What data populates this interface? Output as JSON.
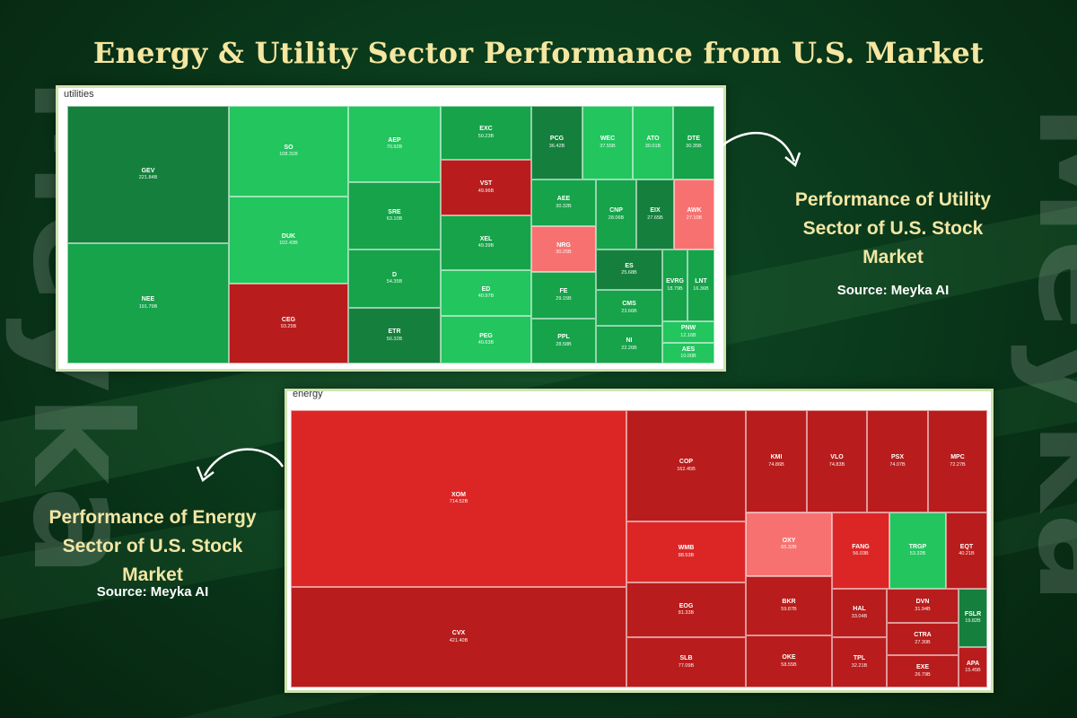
{
  "title": "Energy & Utility Sector Performance from U.S. Market",
  "watermark": "Meyka",
  "utility_caption": {
    "line1": "Performance of Utility",
    "line2": "Sector of U.S. Stock",
    "line3": "Market",
    "source": "Source: Meyka AI"
  },
  "energy_caption": {
    "line1": "Performance of Energy",
    "line2": "Sector of U.S. Stock",
    "line3": "Market",
    "source": "Source: Meyka AI"
  },
  "colors": {
    "dark_green": "#15803d",
    "green": "#16a34a",
    "bright_green": "#22c55e",
    "light_red": "#f87171",
    "red": "#dc2626",
    "dark_red": "#b91c1c",
    "title": "#f5e6a0",
    "caption": "#f2e6a4"
  },
  "chart_data": [
    {
      "type": "treemap",
      "title": "utilities",
      "items": [
        {
          "ticker": "GEV",
          "cap": "221.84B",
          "color": "dark_green"
        },
        {
          "ticker": "NEE",
          "cap": "191.79B",
          "color": "green"
        },
        {
          "ticker": "SO",
          "cap": "108.31B",
          "color": "bright_green"
        },
        {
          "ticker": "DUK",
          "cap": "102.43B",
          "color": "bright_green"
        },
        {
          "ticker": "CEG",
          "cap": "93.25B",
          "color": "dark_red"
        },
        {
          "ticker": "AEP",
          "cap": "70.92B",
          "color": "bright_green"
        },
        {
          "ticker": "SRE",
          "cap": "63.10B",
          "color": "green"
        },
        {
          "ticker": "D",
          "cap": "54.35B",
          "color": "green"
        },
        {
          "ticker": "ETR",
          "cap": "50.32B",
          "color": "dark_green"
        },
        {
          "ticker": "EXC",
          "cap": "50.23B",
          "color": "green"
        },
        {
          "ticker": "VST",
          "cap": "49.96B",
          "color": "dark_red"
        },
        {
          "ticker": "XEL",
          "cap": "49.39B",
          "color": "green"
        },
        {
          "ticker": "ED",
          "cap": "40.97B",
          "color": "bright_green"
        },
        {
          "ticker": "PEG",
          "cap": "40.63B",
          "color": "bright_green"
        },
        {
          "ticker": "PCG",
          "cap": "36.42B",
          "color": "dark_green"
        },
        {
          "ticker": "WEC",
          "cap": "37.55B",
          "color": "bright_green"
        },
        {
          "ticker": "ATO",
          "cap": "30.01B",
          "color": "bright_green"
        },
        {
          "ticker": "DTE",
          "cap": "30.35B",
          "color": "green"
        },
        {
          "ticker": "AEE",
          "cap": "30.32B",
          "color": "green"
        },
        {
          "ticker": "NRG",
          "cap": "30.25B",
          "color": "light_red"
        },
        {
          "ticker": "FE",
          "cap": "29.15B",
          "color": "green"
        },
        {
          "ticker": "PPL",
          "cap": "28.58B",
          "color": "green"
        },
        {
          "ticker": "CNP",
          "cap": "28.06B",
          "color": "green"
        },
        {
          "ticker": "EIX",
          "cap": "27.65B",
          "color": "dark_green"
        },
        {
          "ticker": "AWK",
          "cap": "27.10B",
          "color": "light_red"
        },
        {
          "ticker": "ES",
          "cap": "25.68B",
          "color": "dark_green"
        },
        {
          "ticker": "CMS",
          "cap": "23.66B",
          "color": "green"
        },
        {
          "ticker": "NI",
          "cap": "22.26B",
          "color": "green"
        },
        {
          "ticker": "EVRG",
          "cap": "18.79B",
          "color": "green"
        },
        {
          "ticker": "LNT",
          "cap": "16.36B",
          "color": "green"
        },
        {
          "ticker": "PNW",
          "cap": "12.16B",
          "color": "bright_green"
        },
        {
          "ticker": "AES",
          "cap": "10.00B",
          "color": "bright_green"
        }
      ]
    },
    {
      "type": "treemap",
      "title": "energy",
      "items": [
        {
          "ticker": "XOM",
          "cap": "714.52B",
          "color": "red"
        },
        {
          "ticker": "CVX",
          "cap": "421.40B",
          "color": "dark_red"
        },
        {
          "ticker": "COP",
          "cap": "162.45B",
          "color": "dark_red"
        },
        {
          "ticker": "WMB",
          "cap": "88.53B",
          "color": "red"
        },
        {
          "ticker": "EOG",
          "cap": "81.33B",
          "color": "dark_red"
        },
        {
          "ticker": "SLB",
          "cap": "77.09B",
          "color": "dark_red"
        },
        {
          "ticker": "KMI",
          "cap": "74.86B",
          "color": "dark_red"
        },
        {
          "ticker": "VLO",
          "cap": "74.83B",
          "color": "dark_red"
        },
        {
          "ticker": "PSX",
          "cap": "74.07B",
          "color": "dark_red"
        },
        {
          "ticker": "MPC",
          "cap": "72.27B",
          "color": "dark_red"
        },
        {
          "ticker": "OXY",
          "cap": "65.32B",
          "color": "light_red"
        },
        {
          "ticker": "FANG",
          "cap": "56.03B",
          "color": "red"
        },
        {
          "ticker": "TRGP",
          "cap": "53.32B",
          "color": "bright_green"
        },
        {
          "ticker": "EQT",
          "cap": "40.21B",
          "color": "dark_red"
        },
        {
          "ticker": "BKR",
          "cap": "59.87B",
          "color": "dark_red"
        },
        {
          "ticker": "OKE",
          "cap": "58.55B",
          "color": "dark_red"
        },
        {
          "ticker": "HAL",
          "cap": "33.04B",
          "color": "dark_red"
        },
        {
          "ticker": "TPL",
          "cap": "32.21B",
          "color": "dark_red"
        },
        {
          "ticker": "DVN",
          "cap": "31.94B",
          "color": "dark_red"
        },
        {
          "ticker": "CTRA",
          "cap": "27.30B",
          "color": "dark_red"
        },
        {
          "ticker": "EXE",
          "cap": "26.79B",
          "color": "dark_red"
        },
        {
          "ticker": "FSLR",
          "cap": "19.82B",
          "color": "dark_green"
        },
        {
          "ticker": "APA",
          "cap": "15.45B",
          "color": "dark_red"
        }
      ]
    }
  ]
}
